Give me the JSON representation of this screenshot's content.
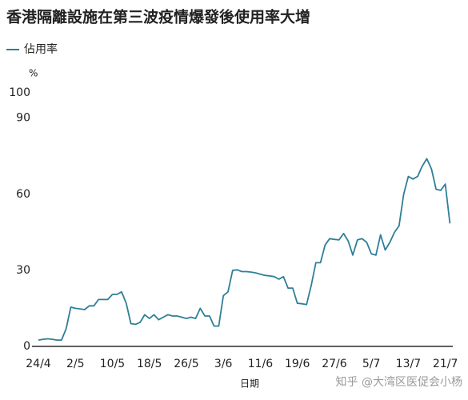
{
  "chart_data": {
    "type": "line",
    "title": "香港隔離設施在第三波疫情爆發後使用率大增",
    "y_unit": "%",
    "x_label": "日期",
    "watermark": "知乎 @大湾区医促会小杨",
    "categories": [
      "24/4",
      null,
      null,
      null,
      null,
      null,
      null,
      null,
      "2/5",
      null,
      null,
      null,
      null,
      null,
      null,
      null,
      "10/5",
      null,
      null,
      null,
      null,
      null,
      null,
      null,
      "18/5",
      null,
      null,
      null,
      null,
      null,
      null,
      null,
      "26/5",
      null,
      null,
      null,
      null,
      null,
      null,
      null,
      "3/6",
      null,
      null,
      null,
      null,
      null,
      null,
      null,
      "11/6",
      null,
      null,
      null,
      null,
      null,
      null,
      null,
      "19/6",
      null,
      null,
      null,
      null,
      null,
      null,
      null,
      "27/6",
      null,
      null,
      null,
      null,
      null,
      null,
      null,
      "5/7",
      null,
      null,
      null,
      null,
      null,
      null,
      null,
      "13/7",
      null,
      null,
      null,
      null,
      null,
      null,
      null,
      "21/7",
      null
    ],
    "series": [
      {
        "name": "佔用率",
        "color": "#2e7f98",
        "values": [
          2.5,
          2.8,
          3,
          2.8,
          2.5,
          2.5,
          7,
          15.5,
          15,
          14.8,
          14.5,
          16,
          16,
          18.5,
          18.5,
          18.5,
          20.5,
          20.5,
          21.5,
          17,
          9,
          8.7,
          9.5,
          12.5,
          11,
          12.5,
          10.5,
          11.5,
          12.5,
          12,
          12,
          11.5,
          11,
          11.5,
          11,
          15,
          12,
          12,
          8,
          8,
          20,
          21.5,
          30,
          30.2,
          29.5,
          29.5,
          29.3,
          29,
          28.5,
          28,
          27.8,
          27.5,
          26.5,
          27.5,
          23,
          23,
          17,
          16.8,
          16.5,
          24,
          33,
          33,
          40,
          42.5,
          42.2,
          42,
          44.5,
          41.5,
          36,
          42,
          42.5,
          41,
          36.5,
          36,
          44,
          38,
          41,
          45,
          47.5,
          60,
          67,
          66,
          67,
          71,
          74,
          70,
          62,
          61.5,
          64,
          48.5
        ]
      }
    ],
    "ylim": [
      0,
      100
    ],
    "yticks": [
      0,
      30,
      60,
      90,
      100
    ],
    "legend": "top-left"
  }
}
